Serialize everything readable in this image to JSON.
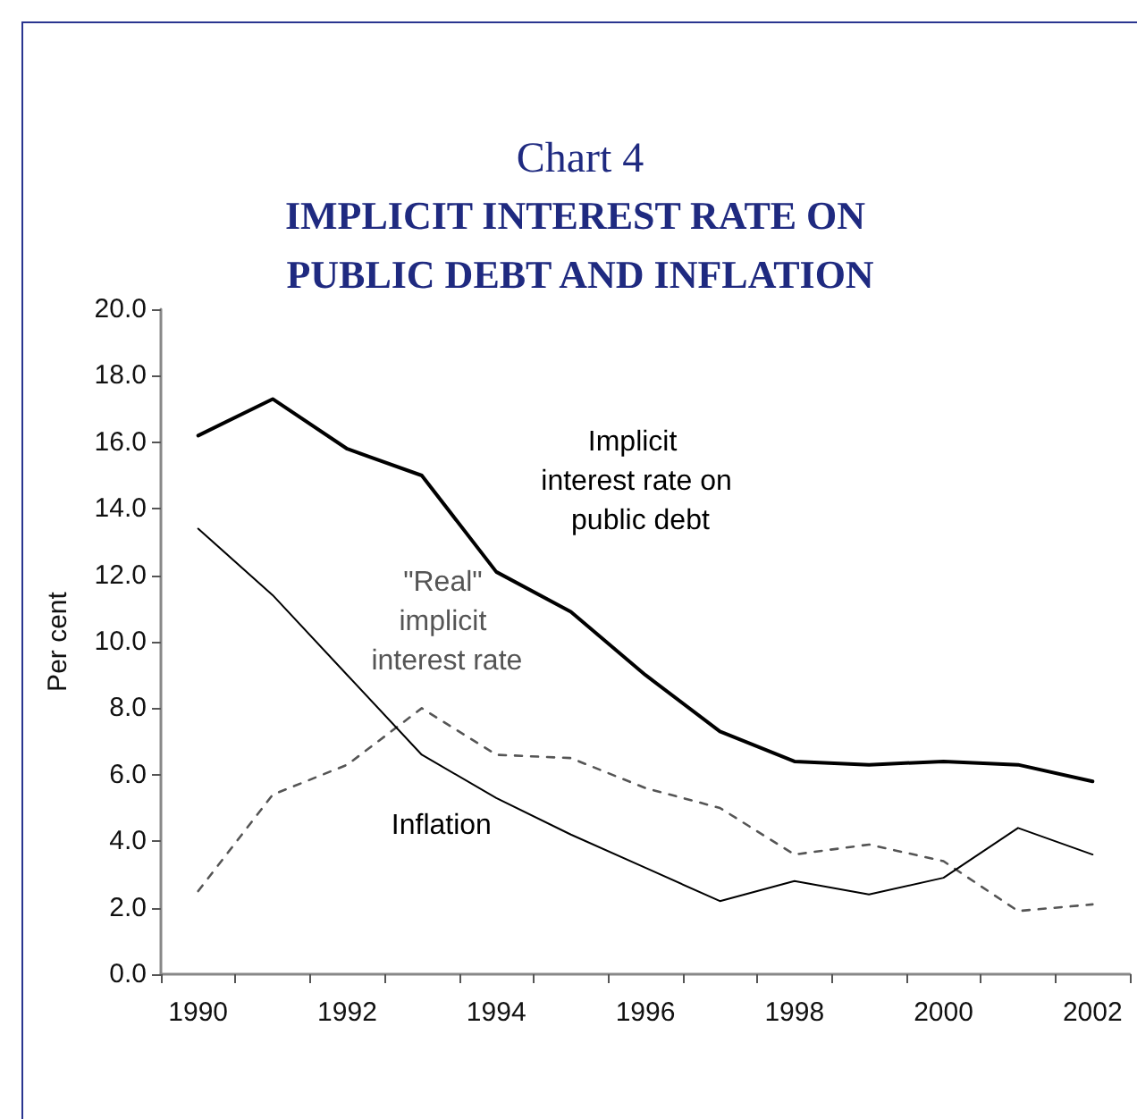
{
  "chart_data": {
    "type": "line",
    "title": "Chart 4",
    "subtitle": "IMPLICIT INTEREST RATE ON PUBLIC DEBT AND INFLATION",
    "ylabel": "Per cent",
    "categories": [
      "1990",
      null,
      "1992",
      null,
      "1994",
      null,
      "1996",
      null,
      "1998",
      null,
      "2000",
      null,
      "2002"
    ],
    "series": [
      {
        "name": "Implicit interest rate on public debt",
        "color": "#000000",
        "line_style": "solid",
        "values": [
          16.2,
          17.3,
          15.8,
          15.0,
          12.1,
          10.9,
          9.0,
          7.3,
          6.4,
          6.3,
          6.4,
          6.3,
          5.8
        ]
      },
      {
        "name": "\"Real\" implicit interest rate",
        "color": "#555555",
        "line_style": "dashed",
        "values": [
          2.5,
          5.4,
          6.3,
          8.0,
          6.6,
          6.5,
          5.6,
          5.0,
          3.6,
          3.9,
          3.4,
          1.9,
          2.1
        ]
      },
      {
        "name": "Inflation",
        "color": "#000000",
        "line_style": "solid",
        "values": [
          13.4,
          11.4,
          9.0,
          6.6,
          5.3,
          4.2,
          3.2,
          2.2,
          2.8,
          2.4,
          2.9,
          4.4,
          3.6
        ]
      }
    ],
    "ylim": [
      0,
      20
    ],
    "yticks": [
      {
        "value": 0,
        "label": "0.0"
      },
      {
        "value": 2,
        "label": "2.0"
      },
      {
        "value": 4,
        "label": "4.0"
      },
      {
        "value": 6,
        "label": "6.0"
      },
      {
        "value": 8,
        "label": "8.0"
      },
      {
        "value": 10,
        "label": "10.0"
      },
      {
        "value": 12,
        "label": "12.0"
      },
      {
        "value": 14,
        "label": "14.0"
      },
      {
        "value": 16,
        "label": "16.0"
      },
      {
        "value": 18,
        "label": "18.0"
      },
      {
        "value": 20,
        "label": "20.0"
      }
    ],
    "grid": false,
    "legend": false,
    "marker": "none"
  }
}
